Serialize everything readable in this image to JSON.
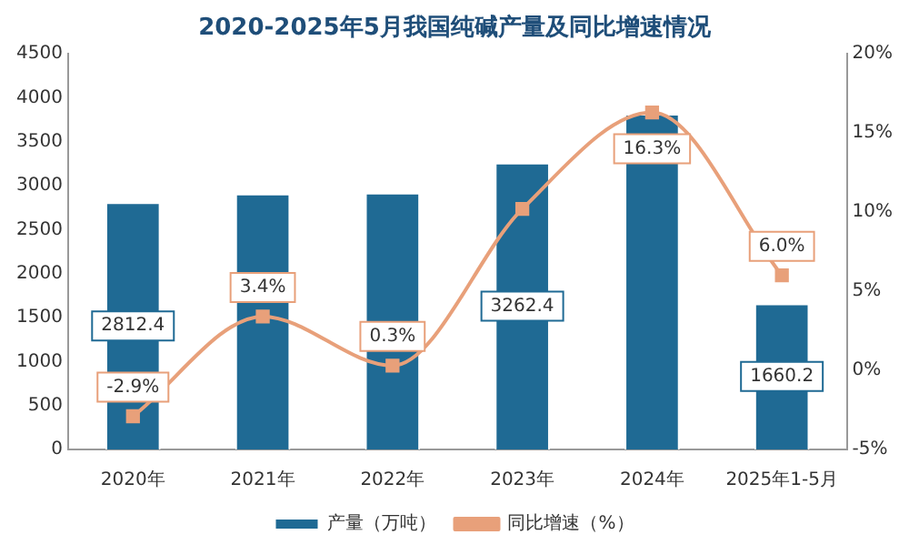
{
  "chart_data": {
    "type": "bar",
    "title": "2020-2025年5月我国纯碱产量及同比增速情况",
    "categories": [
      "2020年",
      "2021年",
      "2022年",
      "2023年",
      "2024年",
      "2025年1-5月"
    ],
    "series": [
      {
        "name": "产量（万吨）",
        "color": "#1f6a94",
        "values": [
          2812.4,
          2910,
          2920,
          3262.4,
          3820,
          1660.2
        ],
        "value_labels": [
          "2812.4",
          null,
          null,
          "3262.4",
          null,
          "1660.2"
        ]
      },
      {
        "name": "同比增速（%）",
        "type": "line",
        "axis": "y2",
        "color": "#e8a07a",
        "marker": "square",
        "values": [
          -2.9,
          3.4,
          0.3,
          10.2,
          16.3,
          6.0
        ],
        "value_labels": [
          "-2.9%",
          "3.4%",
          "0.3%",
          null,
          "16.3%",
          "6.0%"
        ]
      }
    ],
    "ylim": [
      0,
      4500
    ],
    "yticks": [
      0,
      500,
      1000,
      1500,
      2000,
      2500,
      3000,
      3500,
      4000,
      4500
    ],
    "y2lim": [
      -5,
      20
    ],
    "y2ticks": [
      {
        "value": -5,
        "label": "-5%"
      },
      {
        "value": 0,
        "label": "0%"
      },
      {
        "value": 5,
        "label": "5%"
      },
      {
        "value": 10,
        "label": "10%"
      },
      {
        "value": 15,
        "label": "15%"
      },
      {
        "value": 20,
        "label": "20%"
      }
    ],
    "grid": false,
    "legend": "bottom"
  }
}
